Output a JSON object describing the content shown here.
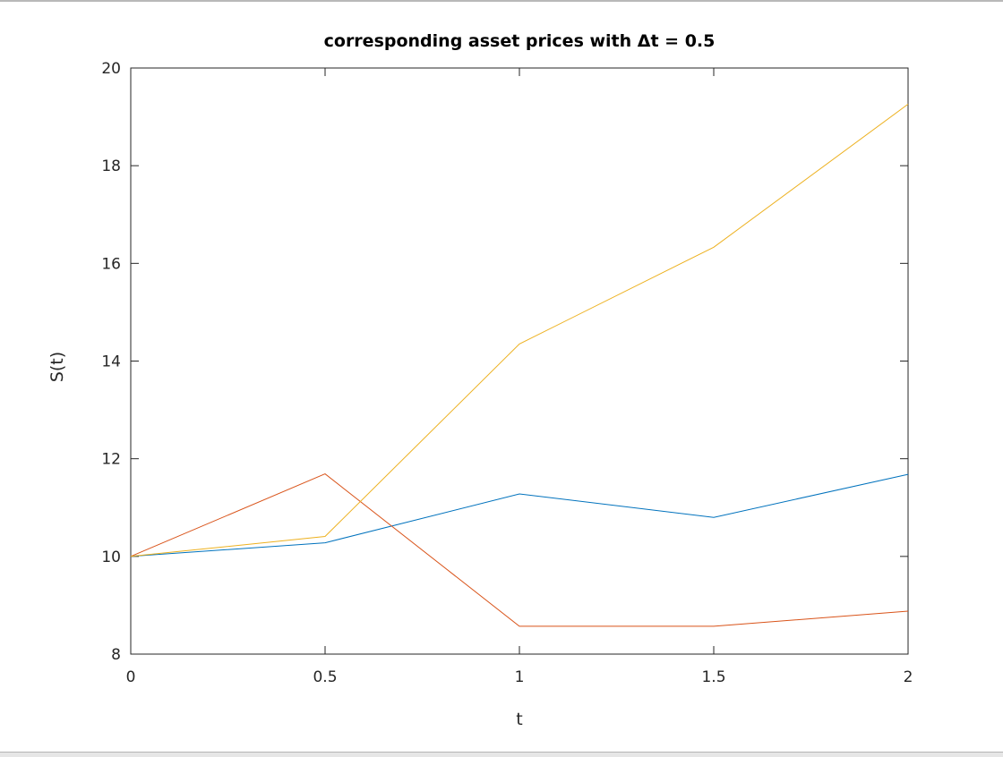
{
  "chart_data": {
    "type": "line",
    "title": "corresponding asset prices with Δt = 0.5",
    "xlabel": "t",
    "ylabel": "S(t)",
    "xlim": [
      0,
      2
    ],
    "ylim": [
      8,
      20
    ],
    "x_ticks": [
      "0",
      "0.5",
      "1",
      "1.5",
      "2"
    ],
    "y_ticks": [
      "8",
      "10",
      "12",
      "14",
      "16",
      "18",
      "20"
    ],
    "grid": false,
    "legend": "none",
    "x": [
      0,
      0.5,
      1,
      1.5,
      2
    ],
    "series": [
      {
        "color": "#0072BD",
        "values": [
          10,
          10.28,
          11.28,
          10.8,
          11.68
        ]
      },
      {
        "color": "#D95319",
        "values": [
          10,
          11.69,
          8.57,
          8.57,
          8.88
        ]
      },
      {
        "color": "#EDB120",
        "values": [
          10,
          10.41,
          14.35,
          16.33,
          19.26
        ]
      }
    ]
  }
}
